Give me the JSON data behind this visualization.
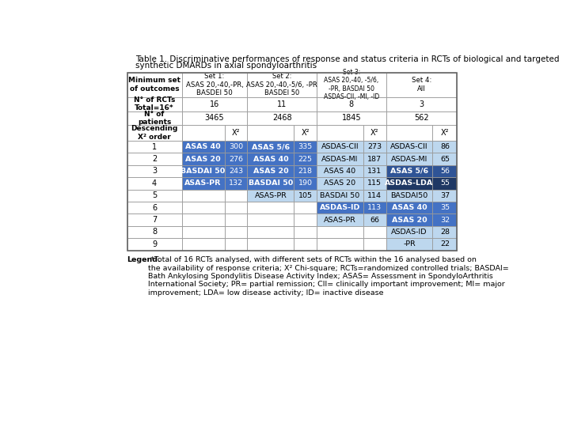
{
  "title_line1": "Table 1. Discriminative performances of response and status criteria in RCTs of biological and targeted",
  "title_line2": "synthetic DMARDs in axial spondyloarthritis",
  "legend_bold": "Legend.",
  "legend_rest": " *Total of 16 RCTs analysed, with different sets of RCTs within the 16 analysed based on\nthe availability of response criteria; X² Chi-square; RCTs=randomized controlled trials; BASDAI=\nBath Ankylosing Spondylitis Disease Activity Index; ASAS= Assessment in SpondyloArthritis\nInternational Society; PR= partial remission; CII= clinically important improvement; MI= major\nimprovement; LDA= low disease activity; ID= inactive disease",
  "header_row": [
    "Minimum set\nof outcomes",
    "Set 1:\nASAS 20,-40,-PR,\nBASDEI 50",
    "Set 2:\nASAS 20,-40,-5/6, -PR\nBASDEI 50",
    "Set 3:\nASAS 20,-40, -5/6,\n-PR, BASDAI 50\nASDAS-CII, -MI, -ID",
    "Set 4:\nAll"
  ],
  "row_rcts": [
    "N° of RCTs\nTotal=16*",
    "16",
    "11",
    "8",
    "3"
  ],
  "row_patients": [
    "N° of\npatients",
    "3465",
    "2468",
    "1845",
    "562"
  ],
  "row_chi": "Descending\nX² order",
  "data_rows": [
    [
      1,
      "ASAS 40",
      "300",
      "ASAS 5/6",
      "335",
      "ASDAS-CII",
      "273",
      "ASDAS-CII",
      "86"
    ],
    [
      2,
      "ASAS 20",
      "276",
      "ASAS 40",
      "225",
      "ASDAS-MI",
      "187",
      "ASDAS-MI",
      "65"
    ],
    [
      3,
      "BASDAI 50",
      "243",
      "ASAS 20",
      "218",
      "ASAS 40",
      "131",
      "ASAS 5/6",
      "56"
    ],
    [
      4,
      "ASAS-PR",
      "132",
      "BASDAI 50",
      "190",
      "ASAS 20",
      "115",
      "ASDAS-LDA",
      "55"
    ],
    [
      5,
      "",
      "",
      "ASAS-PR",
      "105",
      "BASDAI 50",
      "114",
      "BASDAI50",
      "37"
    ],
    [
      6,
      "",
      "",
      "",
      "",
      "ASDAS-ID",
      "113",
      "ASAS 40",
      "35"
    ],
    [
      7,
      "",
      "",
      "",
      "",
      "ASAS-PR",
      "66",
      "ASAS 20",
      "32"
    ],
    [
      8,
      "",
      "",
      "",
      "",
      "",
      "",
      "ASDAS-ID",
      "28"
    ],
    [
      9,
      "",
      "",
      "",
      "",
      "",
      "",
      "-PR",
      "22"
    ]
  ],
  "set1_colors": [
    "#4472C4",
    "#4472C4",
    "#4472C4",
    "#4472C4",
    "",
    "",
    "",
    "",
    ""
  ],
  "set2_colors": [
    "#4472C4",
    "#4472C4",
    "#4472C4",
    "#4472C4",
    "#BDD7EE",
    "",
    "",
    "",
    ""
  ],
  "set3_colors": [
    "#BDD7EE",
    "#BDD7EE",
    "#BDD7EE",
    "#BDD7EE",
    "#BDD7EE",
    "#4472C4",
    "#BDD7EE",
    "",
    ""
  ],
  "set4_colors": [
    "#BDD7EE",
    "#BDD7EE",
    "#2F5496",
    "#1F3864",
    "#BDD7EE",
    "#4472C4",
    "#4472C4",
    "#BDD7EE",
    "#BDD7EE"
  ]
}
